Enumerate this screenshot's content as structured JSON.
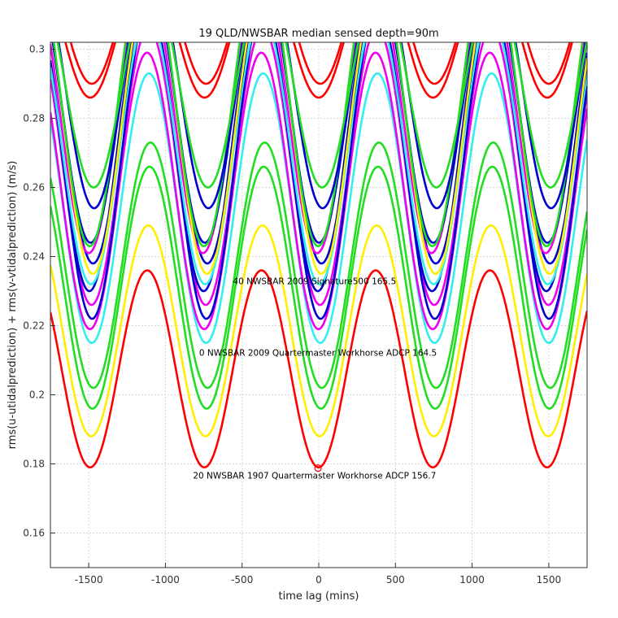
{
  "chart_data": {
    "type": "line",
    "title": "19 QLD/NWSBAR median sensed depth=90m",
    "xlabel": "time lag (mins)",
    "ylabel": "rms(u-utidalprediction) + rms(v-vtidalprediction) (m/s)",
    "xlim": [
      -1750,
      1750
    ],
    "ylim": [
      0.15,
      0.302
    ],
    "xticks": [
      -1500,
      -1000,
      -500,
      0,
      500,
      1000,
      1500
    ],
    "yticks": [
      0.16,
      0.18,
      0.2,
      0.22,
      0.24,
      0.26,
      0.28,
      0.3
    ],
    "xtick_labels": [
      "-1500",
      "-1000",
      "-500",
      "0",
      "500",
      "1000",
      "1500"
    ],
    "ytick_labels": [
      "0.16",
      "0.18",
      "0.2",
      "0.22",
      "0.24",
      "0.26",
      "0.28",
      "0.3"
    ],
    "grid": true,
    "period_mins": 745,
    "series": [
      {
        "name": "red-1",
        "color": "#ff0000",
        "min": 0.179,
        "amplitude": 0.057,
        "min_lag": -1
      },
      {
        "name": "yellow-1",
        "color": "#ffee00",
        "min": 0.188,
        "amplitude": 0.061,
        "min_lag": 6
      },
      {
        "name": "green-1",
        "color": "#22dd22",
        "min": 0.196,
        "amplitude": 0.07,
        "min_lag": 14
      },
      {
        "name": "green-2",
        "color": "#22dd22",
        "min": 0.202,
        "amplitude": 0.071,
        "min_lag": 20
      },
      {
        "name": "cyan-1",
        "color": "#33eeee",
        "min": 0.215,
        "amplitude": 0.078,
        "min_lag": 10
      },
      {
        "name": "magenta-1",
        "color": "#ee00ee",
        "min": 0.219,
        "amplitude": 0.08,
        "min_lag": -2
      },
      {
        "name": "magenta-2",
        "color": "#ee00ee",
        "min": 0.226,
        "amplitude": 0.08,
        "min_lag": 8
      },
      {
        "name": "blue-1",
        "color": "#0000cc",
        "min": 0.222,
        "amplitude": 0.09,
        "min_lag": 12
      },
      {
        "name": "blue-2",
        "color": "#0000cc",
        "min": 0.23,
        "amplitude": 0.085,
        "min_lag": -6
      },
      {
        "name": "cyan-2",
        "color": "#33eeee",
        "min": 0.232,
        "amplitude": 0.078,
        "min_lag": 4
      },
      {
        "name": "blue-3",
        "color": "#0000cc",
        "min": 0.238,
        "amplitude": 0.08,
        "min_lag": 18
      },
      {
        "name": "magenta-3",
        "color": "#ee00ee",
        "min": 0.241,
        "amplitude": 0.08,
        "min_lag": -10
      },
      {
        "name": "yellow-2",
        "color": "#ffee00",
        "min": 0.235,
        "amplitude": 0.085,
        "min_lag": 16
      },
      {
        "name": "blue-4",
        "color": "#0000cc",
        "min": 0.244,
        "amplitude": 0.078,
        "min_lag": 2
      },
      {
        "name": "green-3",
        "color": "#22dd22",
        "min": 0.243,
        "amplitude": 0.085,
        "min_lag": -4
      },
      {
        "name": "blue-5",
        "color": "#0000cc",
        "min": 0.254,
        "amplitude": 0.07,
        "min_lag": 25
      },
      {
        "name": "green-4",
        "color": "#22dd22",
        "min": 0.26,
        "amplitude": 0.06,
        "min_lag": 22
      },
      {
        "name": "red-2",
        "color": "#ff0000",
        "min": 0.286,
        "amplitude": 0.04,
        "min_lag": 0
      },
      {
        "name": "red-3",
        "color": "#ff0000",
        "min": 0.29,
        "amplitude": 0.04,
        "min_lag": 10
      }
    ],
    "marker": {
      "x": -5,
      "y": 0.1788,
      "color": "#ff0000"
    },
    "annotations": [
      {
        "text": "40 NWSBAR 2009 Signature500 165.5",
        "x": -560,
        "y": 0.233
      },
      {
        "text": "0 NWSBAR 2009 Quartermaster Workhorse ADCP 164.5",
        "x": -780,
        "y": 0.2122
      },
      {
        "text": "20 NWSBAR 1907 Quartermaster Workhorse ADCP 156.7",
        "x": -820,
        "y": 0.1767
      }
    ]
  }
}
